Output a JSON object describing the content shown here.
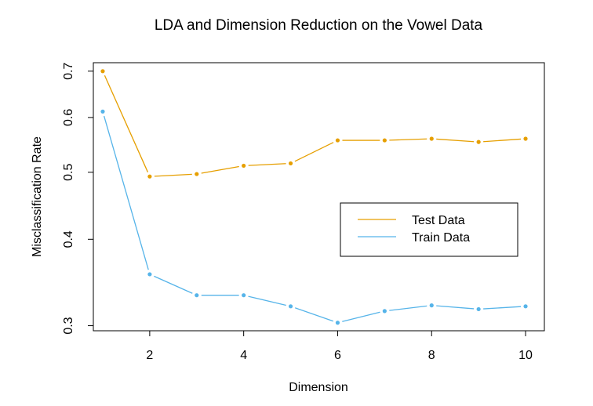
{
  "chart_data": {
    "type": "line",
    "title": "LDA and Dimension Reduction on the Vowel Data",
    "xlabel": "Dimension",
    "ylabel": "Misclassification Rate",
    "x": [
      1,
      2,
      3,
      4,
      5,
      6,
      7,
      8,
      9,
      10
    ],
    "xlim": [
      0.8,
      10.4
    ],
    "ylim": [
      0.295,
      0.72
    ],
    "yscale": "log",
    "xticks": [
      2,
      4,
      6,
      8,
      10
    ],
    "xtick_labels": [
      "2",
      "4",
      "6",
      "8",
      "10"
    ],
    "yticks": [
      0.3,
      0.4,
      0.5,
      0.6,
      0.7
    ],
    "ytick_labels": [
      "0.3",
      "0.4",
      "0.5",
      "0.6",
      "0.7"
    ],
    "grid": false,
    "legend_position": "right",
    "series": [
      {
        "name": "Test Data",
        "color": "#E69F00",
        "values": [
          0.7,
          0.493,
          0.497,
          0.511,
          0.515,
          0.556,
          0.556,
          0.559,
          0.553,
          0.559
        ]
      },
      {
        "name": "Train Data",
        "color": "#56B4E9",
        "values": [
          0.612,
          0.356,
          0.332,
          0.332,
          0.32,
          0.303,
          0.315,
          0.321,
          0.317,
          0.32
        ]
      }
    ]
  }
}
